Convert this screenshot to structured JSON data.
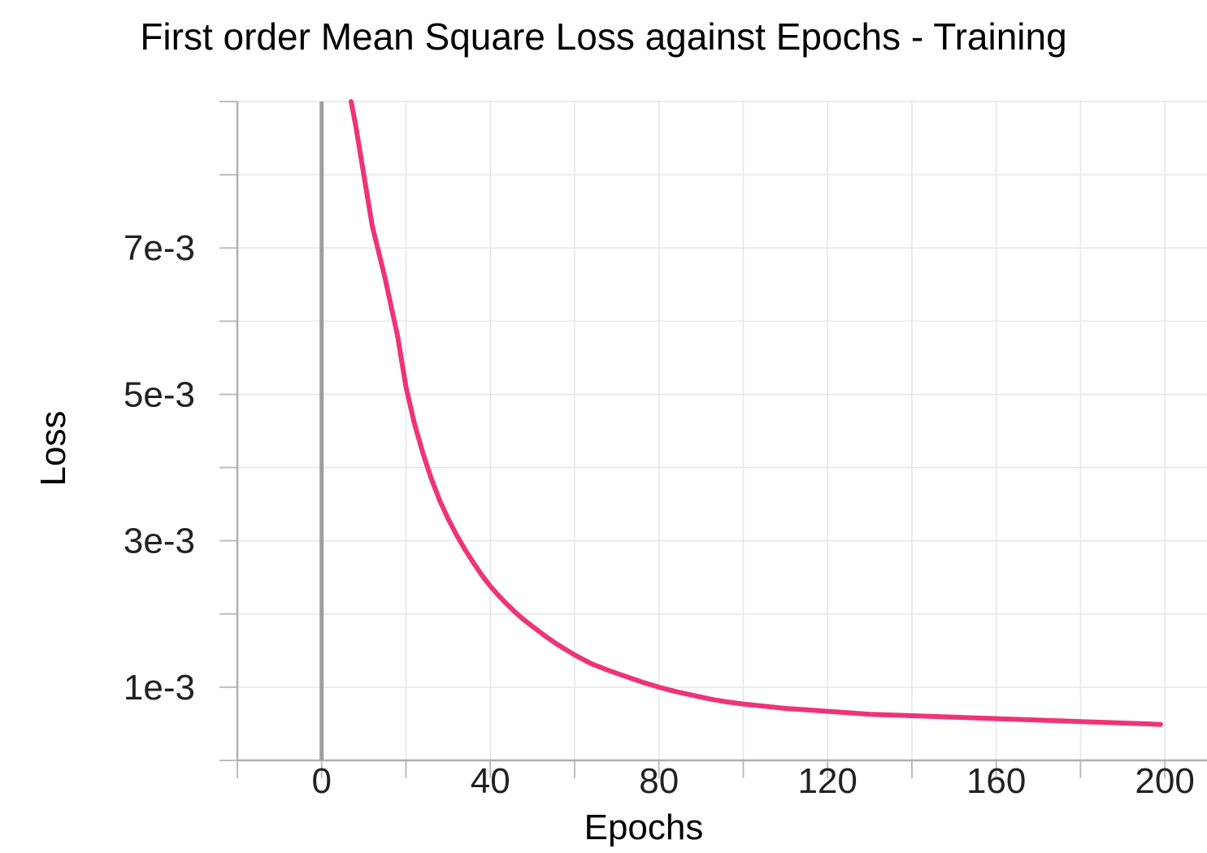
{
  "chart_data": {
    "type": "line",
    "title": "First order Mean Square Loss against Epochs - Training",
    "xlabel": "Epochs",
    "ylabel": "Loss",
    "xlim": [
      -20,
      210
    ],
    "ylim": [
      0,
      0.009
    ],
    "x_ticks": [
      0,
      40,
      80,
      120,
      160,
      200
    ],
    "x_tick_labels": [
      "0",
      "40",
      "80",
      "120",
      "160",
      "200"
    ],
    "y_ticks": [
      0.001,
      0.003,
      0.005,
      0.007
    ],
    "y_tick_labels": [
      "1e-3",
      "3e-3",
      "5e-3",
      "7e-3"
    ],
    "grid": true,
    "line_color": "#ee3377",
    "series": [
      {
        "x": [
          7,
          8,
          10,
          12,
          15,
          18,
          20,
          22,
          24,
          26,
          28,
          30,
          32,
          34,
          36,
          38,
          40,
          42,
          44,
          46,
          48,
          50,
          53,
          56,
          60,
          64,
          68,
          72,
          76,
          80,
          84,
          88,
          92,
          96,
          100,
          105,
          110,
          115,
          120,
          125,
          130,
          135,
          140,
          145,
          150,
          155,
          160,
          165,
          170,
          175,
          180,
          185,
          190,
          195,
          199
        ],
        "values": [
          0.009,
          0.0087,
          0.008,
          0.0073,
          0.0066,
          0.0058,
          0.0051,
          0.0046,
          0.0042,
          0.00385,
          0.00355,
          0.0033,
          0.00308,
          0.00288,
          0.0027,
          0.00253,
          0.00238,
          0.00225,
          0.00213,
          0.00202,
          0.00192,
          0.00183,
          0.0017,
          0.00158,
          0.00144,
          0.00132,
          0.00123,
          0.00115,
          0.00107,
          0.001,
          0.00094,
          0.00089,
          0.00084,
          0.0008,
          0.00077,
          0.00074,
          0.00071,
          0.00069,
          0.00067,
          0.00065,
          0.00063,
          0.00062,
          0.00061,
          0.0006,
          0.00059,
          0.00058,
          0.00057,
          0.00056,
          0.00055,
          0.00054,
          0.00053,
          0.00052,
          0.00051,
          0.0005,
          0.00049
        ]
      }
    ]
  }
}
